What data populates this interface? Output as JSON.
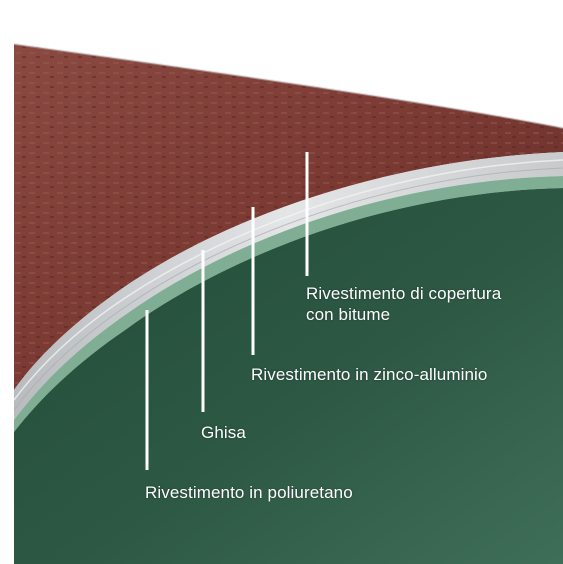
{
  "labels": {
    "bitume_line1": "Rivestimento di copertura",
    "bitume_line2": "con bitume",
    "zinco": "Rivestimento in zinco-alluminio",
    "ghisa": "Ghisa",
    "poliuretano": "Rivestimento in poliuretano"
  },
  "colors": {
    "background": "#ffffff",
    "outer_bitumen": "#7a3a33",
    "zinc_aluminium": "#d7d9db",
    "cast_iron": "#a7aaad",
    "polyurethane_rim": "#7fae94",
    "polyurethane_interior": "#2d5944",
    "leader_line": "#ffffff"
  }
}
